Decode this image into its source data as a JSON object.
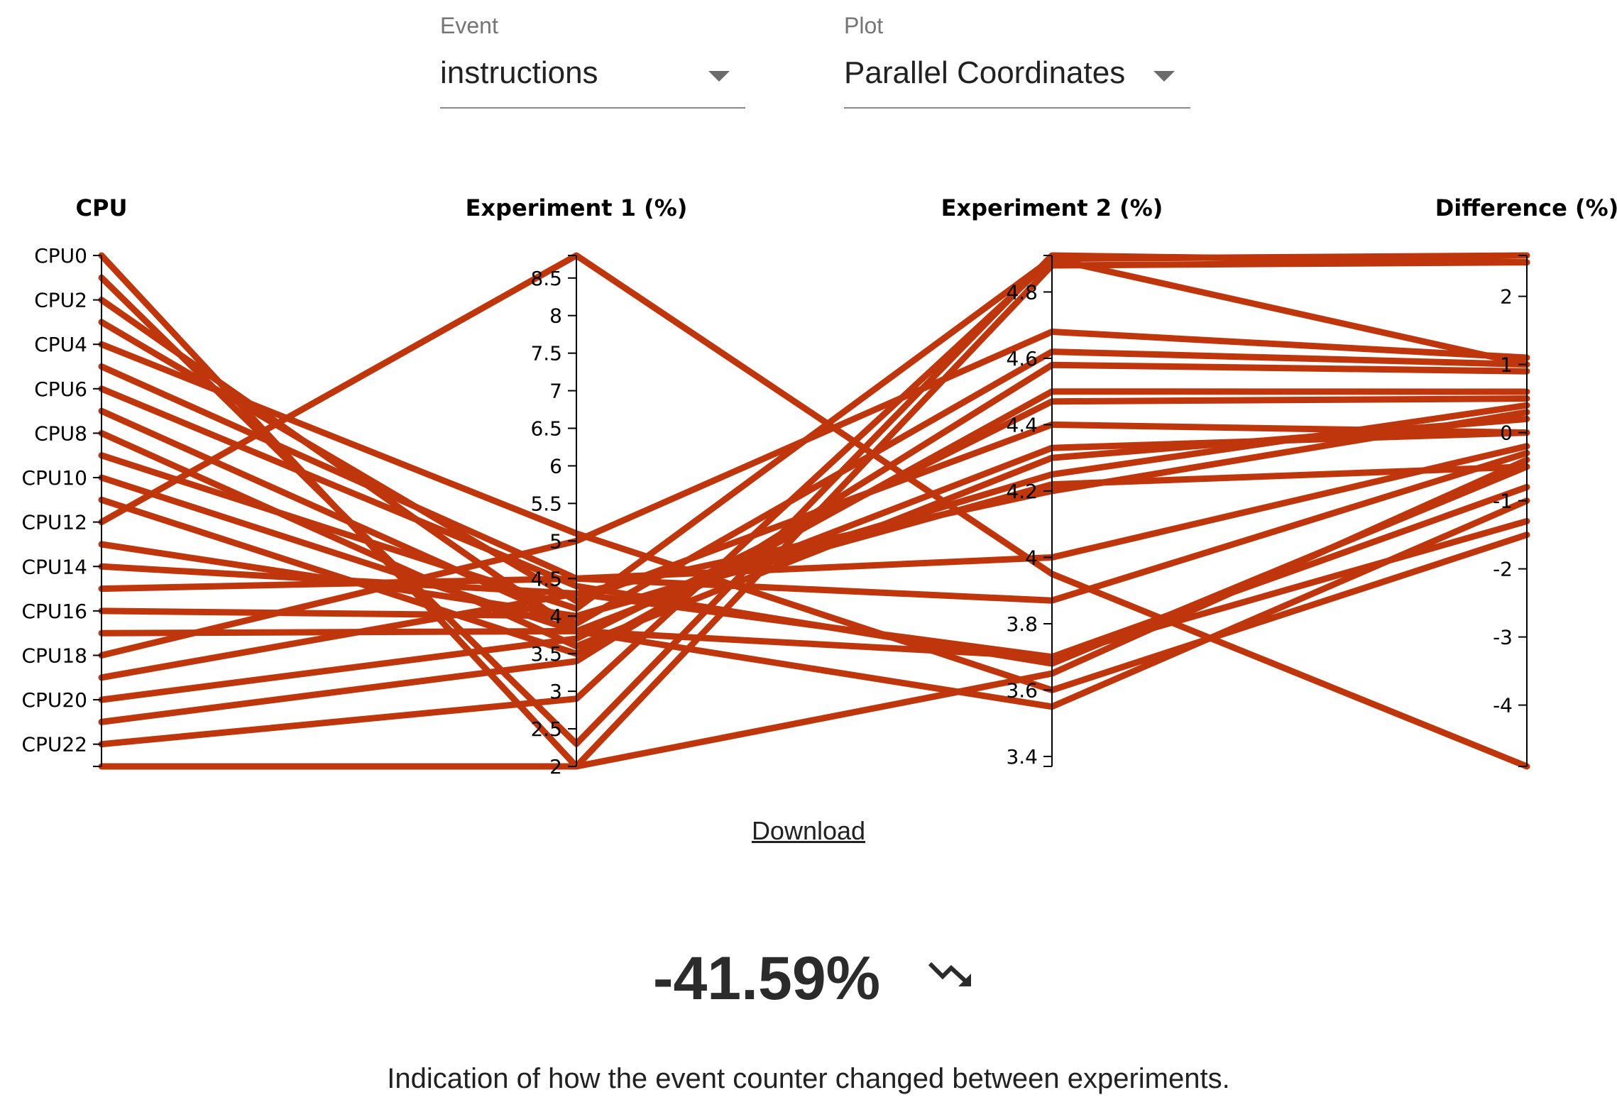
{
  "event_select": {
    "label": "Event",
    "value": "instructions"
  },
  "plot_select": {
    "label": "Plot",
    "value": "Parallel Coordinates"
  },
  "chart_data": {
    "type": "parallel_coordinates",
    "color": "#bf360c",
    "dimensions": [
      {
        "name": "CPU",
        "type": "categorical",
        "ticks": [
          "CPU0",
          "CPU2",
          "CPU4",
          "CPU6",
          "CPU8",
          "CPU10",
          "CPU12",
          "CPU14",
          "CPU16",
          "CPU18",
          "CPU20",
          "CPU22"
        ]
      },
      {
        "name": "Experiment 1 (%)",
        "domain": [
          2.0,
          8.8
        ],
        "ticks": [
          2,
          2.5,
          3,
          3.5,
          4,
          4.5,
          5,
          5.5,
          6,
          6.5,
          7,
          7.5,
          8,
          8.5
        ]
      },
      {
        "name": "Experiment 2 (%)",
        "domain": [
          3.37,
          4.91
        ],
        "ticks": [
          3.4,
          3.6,
          3.8,
          4,
          4.2,
          4.4,
          4.6,
          4.8
        ]
      },
      {
        "name": "Difference (%)",
        "domain": [
          -4.9,
          2.6
        ],
        "ticks": [
          -4,
          -3,
          -2,
          -1,
          0,
          1,
          2
        ]
      }
    ],
    "rows": [
      {
        "cpu": "CPU0",
        "exp1": 2.0,
        "exp2": 3.65,
        "diff": -0.4
      },
      {
        "cpu": "CPU1",
        "exp1": 2.3,
        "exp2": 4.91,
        "diff": 2.5
      },
      {
        "cpu": "CPU2",
        "exp1": 3.8,
        "exp2": 3.7,
        "diff": -0.8
      },
      {
        "cpu": "CPU3",
        "exp1": 4.2,
        "exp2": 4.4,
        "diff": 0.0
      },
      {
        "cpu": "CPU4",
        "exp1": 5.1,
        "exp2": 3.6,
        "diff": -1.5
      },
      {
        "cpu": "CPU5",
        "exp1": 4.5,
        "exp2": 4.0,
        "diff": -0.2
      },
      {
        "cpu": "CPU6",
        "exp1": 4.4,
        "exp2": 3.68,
        "diff": -0.5
      },
      {
        "cpu": "CPU7",
        "exp1": 3.9,
        "exp2": 4.62,
        "diff": 1.0
      },
      {
        "cpu": "CPU8",
        "exp1": 3.6,
        "exp2": 4.3,
        "diff": 0.2
      },
      {
        "cpu": "CPU9",
        "exp1": 4.1,
        "exp2": 4.9,
        "diff": 1.0
      },
      {
        "cpu": "CPU10",
        "exp1": 3.8,
        "exp2": 3.55,
        "diff": -1.0
      },
      {
        "cpu": "CPU11",
        "exp1": 3.5,
        "exp2": 4.5,
        "diff": 0.6
      },
      {
        "cpu": "CPU12",
        "exp1": 8.8,
        "exp2": 3.95,
        "diff": -4.9
      },
      {
        "cpu": "CPU13",
        "exp1": 4.0,
        "exp2": 4.22,
        "diff": -0.5
      },
      {
        "cpu": "CPU14",
        "exp1": 4.3,
        "exp2": 3.7,
        "diff": -1.3
      },
      {
        "cpu": "CPU15",
        "exp1": 4.5,
        "exp2": 3.87,
        "diff": -0.3
      },
      {
        "cpu": "CPU16",
        "exp1": 4.0,
        "exp2": 4.25,
        "diff": 0.4
      },
      {
        "cpu": "CPU17",
        "exp1": 3.8,
        "exp2": 4.33,
        "diff": 0.0
      },
      {
        "cpu": "CPU18",
        "exp1": 5.0,
        "exp2": 4.68,
        "diff": 1.1
      },
      {
        "cpu": "CPU19",
        "exp1": 4.3,
        "exp2": 4.2,
        "diff": 0.3
      },
      {
        "cpu": "CPU20",
        "exp1": 3.7,
        "exp2": 4.47,
        "diff": 0.5
      },
      {
        "cpu": "CPU21",
        "exp1": 3.4,
        "exp2": 4.58,
        "diff": 0.9
      },
      {
        "cpu": "CPU22",
        "exp1": 2.9,
        "exp2": 4.9,
        "diff": 2.6
      },
      {
        "cpu": "CPU23",
        "exp1": 2.0,
        "exp2": 4.88,
        "diff": 2.5
      }
    ]
  },
  "download_label": "Download",
  "summary": {
    "value": "-41.59%",
    "trend_icon": "trending-down-icon"
  },
  "caption": "Indication of how the event counter changed between experiments."
}
